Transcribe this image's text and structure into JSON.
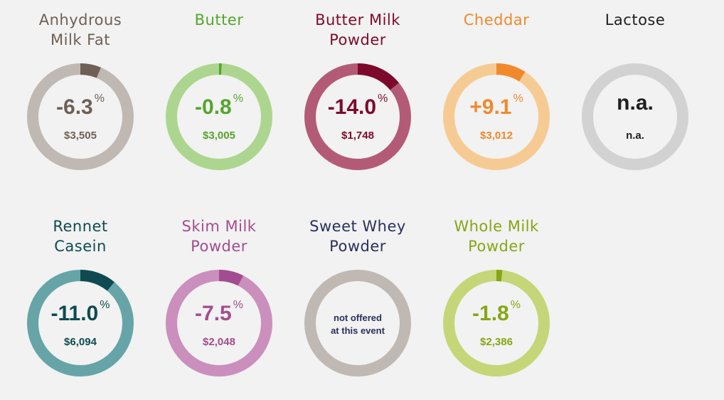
{
  "products": [
    {
      "name_lines": [
        "Anhydrous",
        "Milk Fat"
      ],
      "change": "-6.3",
      "unit": "%",
      "price": "$3,505",
      "change_value": -6.3,
      "color": "#6f5f55",
      "light": "#c0b8b2",
      "status": "ok"
    },
    {
      "name_lines": [
        "Butter"
      ],
      "change": "-0.8",
      "unit": "%",
      "price": "$3,005",
      "change_value": -0.8,
      "color": "#55a52c",
      "light": "#acd68f",
      "status": "ok"
    },
    {
      "name_lines": [
        "Butter Milk",
        "Powder"
      ],
      "change": "-14.0",
      "unit": "%",
      "price": "$1,748",
      "change_value": -14.0,
      "color": "#7d0a2c",
      "light": "#b35b76",
      "status": "ok"
    },
    {
      "name_lines": [
        "Cheddar"
      ],
      "change": "+9.1",
      "unit": "%",
      "price": "$3,012",
      "change_value": 9.1,
      "color": "#f0892c",
      "light": "#f6cb93",
      "status": "ok"
    },
    {
      "name_lines": [
        "Lactose"
      ],
      "change": "n.a.",
      "unit": "",
      "price": "n.a.",
      "change_value": null,
      "color": "#1f1f1f",
      "light": "#d2d2d2",
      "status": "na"
    },
    {
      "name_lines": [
        "Rennet",
        "Casein"
      ],
      "change": "-11.0",
      "unit": "%",
      "price": "$6,094",
      "change_value": -11.0,
      "color": "#0f4a52",
      "light": "#66a4a8",
      "status": "ok"
    },
    {
      "name_lines": [
        "Skim Milk",
        "Powder"
      ],
      "change": "-7.5",
      "unit": "%",
      "price": "$2,048",
      "change_value": -7.5,
      "color": "#a24d91",
      "light": "#cb8fbd",
      "status": "ok"
    },
    {
      "name_lines": [
        "Sweet Whey",
        "Powder"
      ],
      "change": "",
      "unit": "",
      "price": "",
      "note_lines": [
        "not offered",
        "at this event"
      ],
      "change_value": null,
      "color": "#2a2f5e",
      "light": "#c0b8b2",
      "status": "not-offered"
    },
    {
      "name_lines": [
        "Whole Milk",
        "Powder"
      ],
      "change": "-1.8",
      "unit": "%",
      "price": "$2,386",
      "change_value": -1.8,
      "color": "#86a613",
      "light": "#c4d678",
      "status": "ok"
    }
  ]
}
